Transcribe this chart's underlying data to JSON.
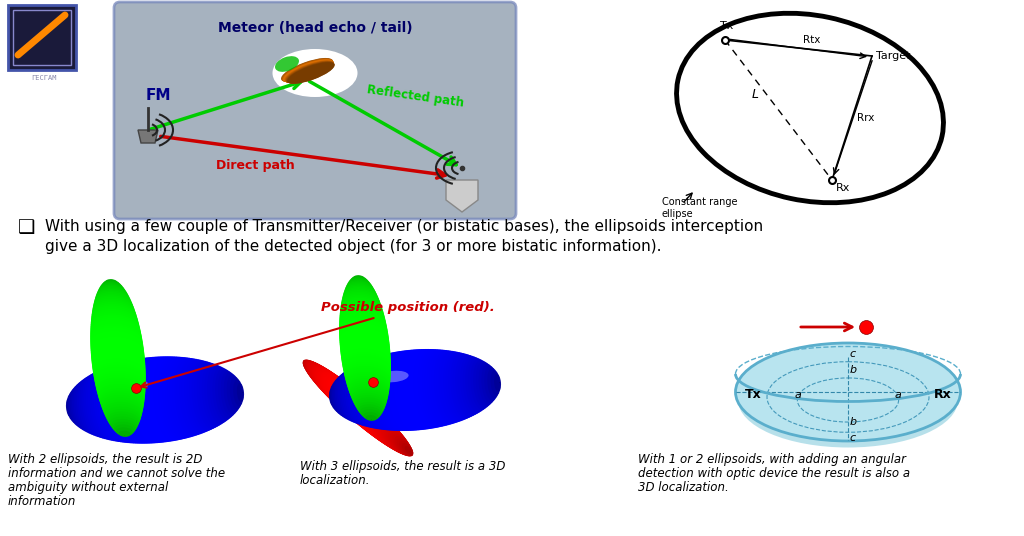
{
  "bg_color": "#ffffff",
  "bullet_text_line1": "With using a few couple of Transmitter/Receiver (or bistatic bases), the ellipsoids interception",
  "bullet_text_line2": "give a 3D localization of the detected object (for 3 or more bistatic information).",
  "caption1_line1": "With 2 ellipsoids, the result is 2D",
  "caption1_line2": "information and we cannot solve the",
  "caption1_line3": "ambiguity without external",
  "caption1_line4": "information",
  "caption2_line1": "With 3 ellipsoids, the result is a 3D",
  "caption2_line2": "localization.",
  "caption3_line1": "With 1 or 2 ellipsoids, with adding an angular",
  "caption3_line2": "detection with optic device the result is also a",
  "caption3_line3": "3D localization.",
  "possible_pos_label": "Possible position (red).",
  "fm_label": "FM",
  "meteor_label": "Meteor (head echo / tail)",
  "reflected_label": "Reflected path",
  "direct_label": "Direct path"
}
